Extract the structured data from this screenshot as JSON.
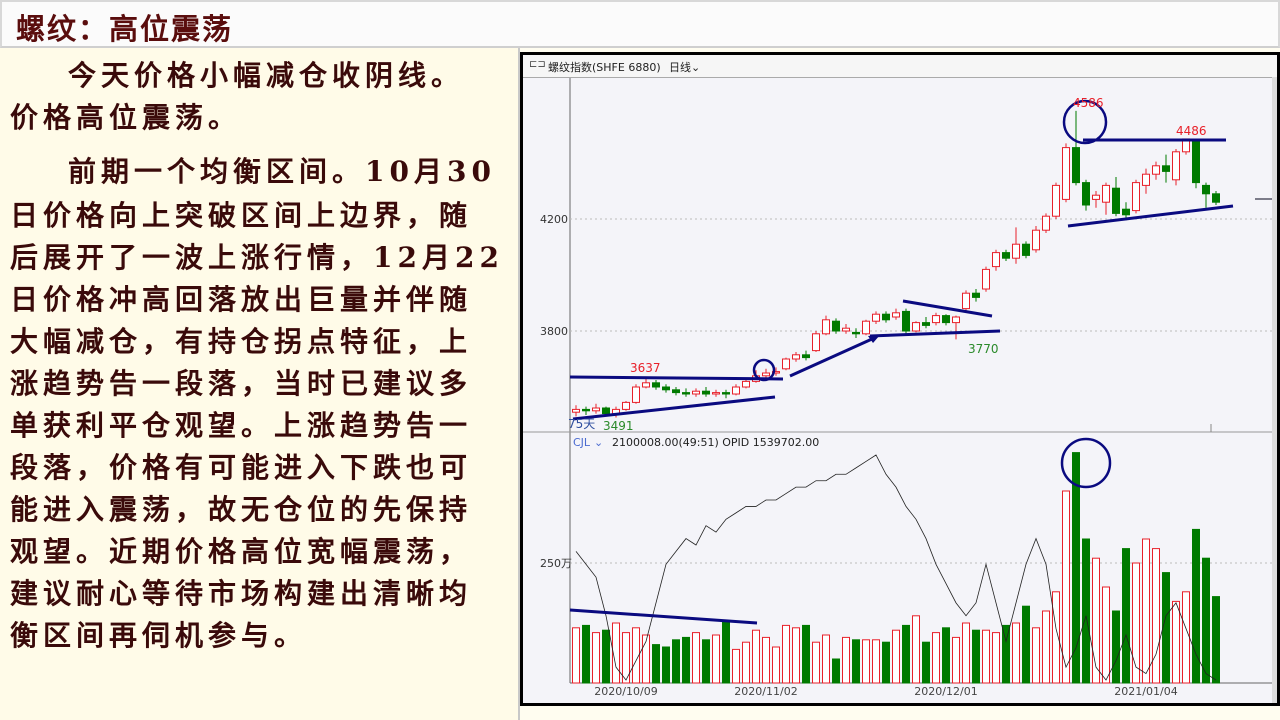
{
  "slide": {
    "title": "螺纹：高位震荡",
    "paragraph_lines": [
      "今天价格小幅减仓收阴线。",
      "价格高位震荡。",
      "前期一个均衡区间。10月30",
      "日价格向上突破区间上边界，随",
      "后展开了一波上涨行情，12月22",
      "日价格冲高回落放出巨量并伴随",
      "大幅减仓，有持仓拐点特征，上",
      "涨趋势告一段落，当时已建议多",
      "单获利平仓观望。上涨趋势告一",
      "段落，价格有可能进入下跌也可",
      "能进入震荡，故无仓位的先保持",
      "观望。近期价格高位宽幅震荡，",
      "建议耐心等待市场构建出清晰均",
      "衡区间再伺机参与。"
    ]
  },
  "chart_header": {
    "link_icon": "link-icon",
    "instrument": "螺纹指数(SHFE 6880)",
    "period": "日线",
    "period_icon": "chevron-down-icon"
  },
  "chart_data": {
    "type": "candlestick",
    "price_axis_ticks": [
      4200,
      3800
    ],
    "price_range": [
      3446,
      4714
    ],
    "volume_axis_ticks": [
      "250万"
    ],
    "volume_tick_value": 250,
    "x_tick_labels": [
      {
        "label": "2020/10/09",
        "bar": 5
      },
      {
        "label": "2020/11/02",
        "bar": 19
      },
      {
        "label": "2020/12/01",
        "bar": 37
      },
      {
        "label": "2021/01/04",
        "bar": 57
      }
    ],
    "candles_ohlc": [
      [
        3510,
        3535,
        3495,
        3520
      ],
      [
        3520,
        3530,
        3500,
        3515
      ],
      [
        3515,
        3540,
        3505,
        3525
      ],
      [
        3525,
        3530,
        3495,
        3505
      ],
      [
        3505,
        3530,
        3491,
        3520
      ],
      [
        3520,
        3550,
        3515,
        3545
      ],
      [
        3545,
        3610,
        3540,
        3600
      ],
      [
        3600,
        3637,
        3595,
        3615
      ],
      [
        3615,
        3625,
        3590,
        3600
      ],
      [
        3600,
        3610,
        3580,
        3590
      ],
      [
        3590,
        3600,
        3570,
        3580
      ],
      [
        3580,
        3595,
        3565,
        3575
      ],
      [
        3575,
        3595,
        3565,
        3585
      ],
      [
        3585,
        3600,
        3565,
        3575
      ],
      [
        3575,
        3590,
        3565,
        3580
      ],
      [
        3580,
        3590,
        3560,
        3575
      ],
      [
        3575,
        3610,
        3570,
        3600
      ],
      [
        3600,
        3630,
        3595,
        3620
      ],
      [
        3620,
        3660,
        3615,
        3640
      ],
      [
        3640,
        3665,
        3630,
        3650
      ],
      [
        3650,
        3670,
        3640,
        3655
      ],
      [
        3665,
        3705,
        3660,
        3700
      ],
      [
        3700,
        3725,
        3690,
        3715
      ],
      [
        3715,
        3730,
        3695,
        3705
      ],
      [
        3730,
        3800,
        3725,
        3790
      ],
      [
        3790,
        3855,
        3785,
        3840
      ],
      [
        3835,
        3845,
        3790,
        3800
      ],
      [
        3800,
        3825,
        3790,
        3810
      ],
      [
        3795,
        3810,
        3775,
        3790
      ],
      [
        3790,
        3840,
        3785,
        3835
      ],
      [
        3835,
        3870,
        3825,
        3860
      ],
      [
        3860,
        3870,
        3830,
        3840
      ],
      [
        3850,
        3880,
        3840,
        3865
      ],
      [
        3870,
        3880,
        3790,
        3800
      ],
      [
        3800,
        3835,
        3795,
        3830
      ],
      [
        3830,
        3850,
        3810,
        3820
      ],
      [
        3830,
        3865,
        3820,
        3855
      ],
      [
        3855,
        3860,
        3820,
        3830
      ],
      [
        3830,
        3855,
        3770,
        3850
      ],
      [
        3880,
        3945,
        3870,
        3935
      ],
      [
        3935,
        3950,
        3905,
        3920
      ],
      [
        3950,
        4030,
        3940,
        4020
      ],
      [
        4030,
        4090,
        4015,
        4080
      ],
      [
        4080,
        4090,
        4050,
        4060
      ],
      [
        4060,
        4170,
        4040,
        4110
      ],
      [
        4110,
        4120,
        4060,
        4070
      ],
      [
        4090,
        4175,
        4080,
        4160
      ],
      [
        4160,
        4220,
        4150,
        4210
      ],
      [
        4210,
        4330,
        4200,
        4320
      ],
      [
        4270,
        4470,
        4260,
        4455
      ],
      [
        4455,
        4586,
        4320,
        4330
      ],
      [
        4330,
        4340,
        4230,
        4250
      ],
      [
        4270,
        4300,
        4240,
        4285
      ],
      [
        4260,
        4330,
        4215,
        4320
      ],
      [
        4310,
        4350,
        4210,
        4220
      ],
      [
        4235,
        4260,
        4195,
        4215
      ],
      [
        4230,
        4340,
        4220,
        4330
      ],
      [
        4320,
        4380,
        4290,
        4360
      ],
      [
        4360,
        4405,
        4340,
        4390
      ],
      [
        4390,
        4430,
        4330,
        4370
      ],
      [
        4340,
        4450,
        4320,
        4440
      ],
      [
        4440,
        4486,
        4430,
        4486
      ],
      [
        4480,
        4486,
        4310,
        4330
      ],
      [
        4320,
        4330,
        4240,
        4290
      ],
      [
        4290,
        4300,
        4250,
        4260
      ]
    ],
    "volume_wan": [
      115,
      120,
      105,
      110,
      125,
      105,
      115,
      100,
      80,
      75,
      90,
      95,
      105,
      90,
      100,
      130,
      70,
      85,
      110,
      95,
      75,
      120,
      115,
      120,
      85,
      100,
      50,
      95,
      90,
      90,
      90,
      85,
      110,
      120,
      140,
      85,
      105,
      115,
      95,
      125,
      110,
      110,
      105,
      120,
      125,
      160,
      115,
      150,
      190,
      400,
      480,
      300,
      260,
      200,
      150,
      280,
      250,
      300,
      280,
      230,
      170,
      190,
      320,
      260,
      180
    ],
    "open_interest_wan": [
      160,
      158,
      156,
      150,
      142,
      140,
      143,
      146,
      152,
      158,
      160,
      162,
      161,
      164,
      163,
      165,
      166,
      167,
      167,
      168,
      168,
      169,
      170,
      170,
      171,
      171,
      172,
      172,
      173,
      174,
      175,
      172,
      170,
      167,
      165,
      162,
      158,
      155,
      152,
      150,
      152,
      158,
      152,
      146,
      152,
      158,
      162,
      158,
      148,
      142,
      145,
      150,
      142,
      140,
      143,
      147,
      142,
      141,
      144,
      150,
      152,
      148,
      144,
      141,
      140
    ],
    "annotations": {
      "high_early": "3637",
      "low_early": "3491",
      "low_plateau": "3770",
      "peak": "4586",
      "recent_high": "4486",
      "ma_label": "75天"
    },
    "indicator_line": {
      "name": "CJL",
      "values_text": "2100008.00(49:51)  OPID 1539702.00"
    },
    "colors": {
      "up": "#e8202a",
      "down": "#007a00",
      "trendline": "#0a0a80",
      "oi_line": "#222222"
    }
  }
}
